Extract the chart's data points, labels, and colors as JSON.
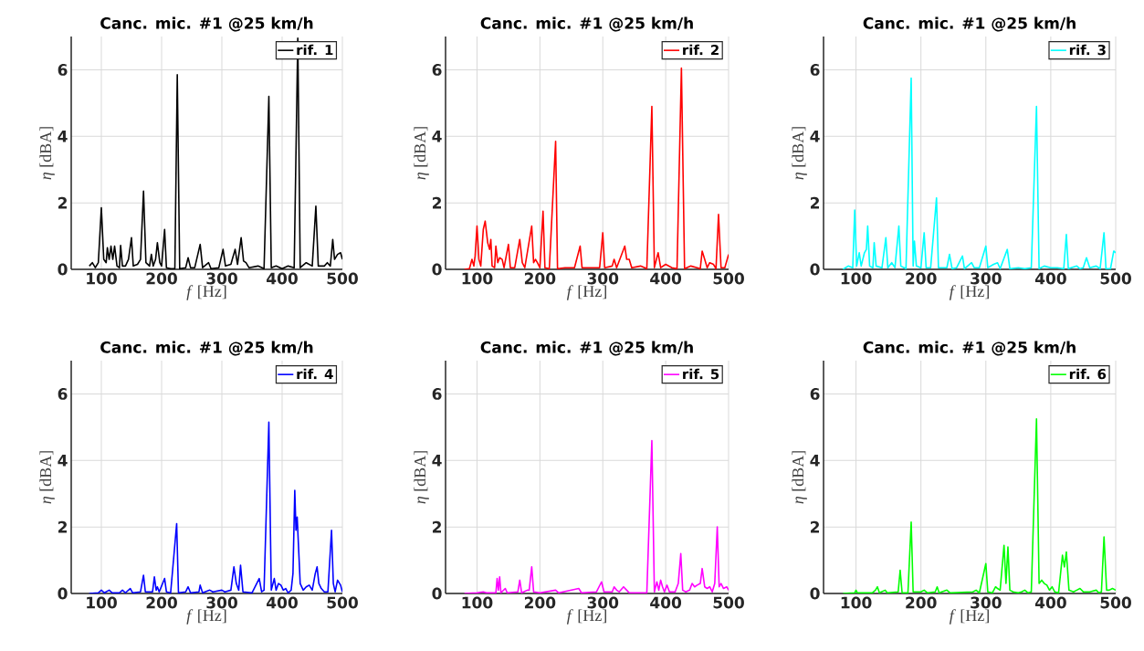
{
  "chart_data": [
    {
      "type": "line",
      "title": "Canc. mic. #1 @25 km/h",
      "xlabel": "*f* [Hz]",
      "ylabel": "*η* [dBA]",
      "xlim": [
        50,
        500
      ],
      "ylim": [
        0,
        7
      ],
      "xticks": [
        100,
        200,
        300,
        400,
        500
      ],
      "yticks": [
        0,
        2,
        4,
        6
      ],
      "grid": true,
      "legend": "top right",
      "series": [
        {
          "name": "rif. 1",
          "color": "#000000",
          "x": [
            80,
            85,
            90,
            95,
            100,
            104,
            108,
            110,
            113,
            116,
            119,
            122,
            126,
            130,
            132,
            135,
            140,
            145,
            150,
            153,
            160,
            165,
            170,
            174,
            180,
            183,
            186,
            190,
            193,
            197,
            200,
            205,
            208,
            215,
            222,
            226,
            230,
            240,
            244,
            248,
            255,
            264,
            268,
            278,
            282,
            295,
            302,
            306,
            315,
            322,
            326,
            332,
            336,
            340,
            345,
            360,
            370,
            378,
            382,
            390,
            400,
            410,
            420,
            426,
            430,
            440,
            450,
            456,
            460,
            470,
            475,
            480,
            484,
            487,
            492,
            497,
            500
          ],
          "values": [
            0.1,
            0.2,
            0.05,
            0.2,
            1.85,
            0.3,
            0.2,
            0.65,
            0.3,
            0.7,
            0.3,
            0.7,
            0.1,
            0.05,
            0.72,
            0.1,
            0.1,
            0.3,
            0.95,
            0.1,
            0.15,
            0.3,
            2.35,
            0.2,
            0.1,
            0.45,
            0.1,
            0.3,
            0.8,
            0.2,
            0.1,
            1.2,
            0.05,
            0.02,
            0.02,
            5.85,
            0.02,
            0.05,
            0.35,
            0.05,
            0.05,
            0.75,
            0.05,
            0.2,
            0.02,
            0.05,
            0.6,
            0.1,
            0.15,
            0.6,
            0.15,
            0.95,
            0.25,
            0.2,
            0.05,
            0.1,
            0.02,
            5.2,
            0.05,
            0.1,
            0.02,
            0.1,
            0.05,
            6.95,
            0.05,
            0.2,
            0.1,
            1.9,
            0.1,
            0.1,
            0.2,
            0.1,
            0.9,
            0.3,
            0.45,
            0.5,
            0.3
          ]
        }
      ]
    },
    {
      "type": "line",
      "title": "Canc. mic. #1 @25 km/h",
      "xlabel": "*f* [Hz]",
      "ylabel": "*η* [dBA]",
      "xlim": [
        50,
        500
      ],
      "ylim": [
        0,
        7
      ],
      "xticks": [
        100,
        200,
        300,
        400,
        500
      ],
      "yticks": [
        0,
        2,
        4,
        6
      ],
      "grid": true,
      "legend": "top right",
      "series": [
        {
          "name": "rif. 2",
          "color": "#ff0000",
          "x": [
            80,
            88,
            92,
            95,
            97,
            100,
            103,
            106,
            110,
            113,
            117,
            120,
            122,
            124,
            128,
            130,
            133,
            136,
            140,
            143,
            150,
            153,
            160,
            168,
            172,
            176,
            187,
            190,
            193,
            196,
            200,
            205,
            208,
            215,
            225,
            228,
            240,
            255,
            264,
            267,
            280,
            295,
            300,
            303,
            315,
            318,
            322,
            335,
            338,
            342,
            346,
            360,
            370,
            378,
            382,
            388,
            392,
            400,
            410,
            418,
            425,
            430,
            440,
            450,
            455,
            458,
            462,
            466,
            470,
            476,
            480,
            484,
            488,
            494,
            500
          ],
          "values": [
            0,
            0.02,
            0.3,
            0.1,
            0.4,
            1.3,
            0.3,
            0.1,
            1.2,
            1.45,
            0.8,
            0.6,
            0.9,
            0.1,
            0.05,
            0.7,
            0.2,
            0.35,
            0.3,
            0.05,
            0.75,
            0.05,
            0.05,
            0.9,
            0.2,
            0.05,
            1.3,
            0.2,
            0.3,
            0.2,
            0.05,
            1.75,
            0.05,
            0.02,
            3.85,
            0.02,
            0.05,
            0.05,
            0.7,
            0.05,
            0.05,
            0.05,
            1.1,
            0.05,
            0.1,
            0.3,
            0.05,
            0.7,
            0.3,
            0.3,
            0.05,
            0.1,
            0.02,
            4.9,
            0.05,
            0.5,
            0.05,
            0.15,
            0.05,
            0.02,
            6.05,
            0.02,
            0.1,
            0.05,
            0.02,
            0.55,
            0.3,
            0.05,
            0.2,
            0.15,
            0.02,
            1.65,
            0.05,
            0.05,
            0.45
          ]
        }
      ]
    },
    {
      "type": "line",
      "title": "Canc. mic. #1 @25 km/h",
      "xlabel": "*f* [Hz]",
      "ylabel": "*η* [dBA]",
      "xlim": [
        50,
        500
      ],
      "ylim": [
        0,
        7
      ],
      "xticks": [
        100,
        200,
        300,
        400,
        500
      ],
      "yticks": [
        0,
        2,
        4,
        6
      ],
      "grid": true,
      "legend": "top right",
      "series": [
        {
          "name": "rif. 3",
          "color": "#00ffff",
          "x": [
            80,
            88,
            95,
            98,
            101,
            105,
            108,
            113,
            116,
            118,
            121,
            126,
            128,
            131,
            140,
            146,
            149,
            155,
            160,
            166,
            169,
            177,
            185,
            188,
            190,
            193,
            200,
            205,
            208,
            215,
            224,
            227,
            240,
            244,
            248,
            255,
            264,
            267,
            278,
            282,
            290,
            300,
            303,
            312,
            318,
            322,
            333,
            337,
            350,
            360,
            370,
            378,
            382,
            390,
            400,
            410,
            420,
            424,
            427,
            440,
            445,
            450,
            455,
            460,
            470,
            476,
            482,
            485,
            492,
            497,
            500
          ],
          "values": [
            0,
            0.1,
            0.05,
            1.78,
            0.1,
            0.5,
            0.1,
            0.5,
            0.6,
            1.3,
            0.1,
            0.05,
            0.8,
            0.1,
            0.05,
            0.95,
            0.05,
            0.2,
            0.05,
            1.3,
            0.1,
            0.02,
            5.75,
            0.1,
            0.85,
            0.1,
            0.05,
            1.1,
            0.05,
            0.05,
            2.15,
            0.05,
            0.05,
            0.45,
            0.02,
            0.05,
            0.4,
            0.02,
            0.2,
            0.05,
            0.05,
            0.7,
            0.05,
            0.15,
            0.2,
            0.02,
            0.6,
            0.02,
            0.05,
            0.02,
            0.05,
            4.9,
            0.02,
            0.1,
            0.05,
            0.05,
            0.02,
            1.05,
            0.02,
            0.1,
            0.02,
            0.05,
            0.35,
            0.05,
            0.1,
            0.02,
            1.1,
            0.02,
            0.02,
            0.55,
            0.5
          ]
        }
      ]
    },
    {
      "type": "line",
      "title": "Canc. mic. #1 @25 km/h",
      "xlabel": "*f* [Hz]",
      "ylabel": "*η* [dBA]",
      "xlim": [
        50,
        500
      ],
      "ylim": [
        0,
        7
      ],
      "xticks": [
        100,
        200,
        300,
        400,
        500
      ],
      "yticks": [
        0,
        2,
        4,
        6
      ],
      "grid": true,
      "legend": "top right",
      "series": [
        {
          "name": "rif. 4",
          "color": "#0000ff",
          "x": [
            80,
            95,
            100,
            105,
            113,
            118,
            130,
            135,
            140,
            148,
            152,
            165,
            170,
            173,
            185,
            188,
            191,
            193,
            196,
            205,
            208,
            215,
            225,
            228,
            240,
            244,
            248,
            262,
            264,
            268,
            280,
            285,
            300,
            305,
            315,
            320,
            324,
            328,
            331,
            335,
            350,
            362,
            366,
            370,
            378,
            382,
            387,
            390,
            394,
            398,
            402,
            406,
            410,
            415,
            418,
            421,
            423,
            425,
            427,
            430,
            435,
            440,
            445,
            450,
            455,
            458,
            461,
            465,
            470,
            476,
            482,
            485,
            488,
            492,
            497,
            500
          ],
          "values": [
            0,
            0.02,
            0.1,
            0.02,
            0.1,
            0.02,
            0.02,
            0.1,
            0.02,
            0.15,
            0.02,
            0.05,
            0.55,
            0.05,
            0.05,
            0.5,
            0.1,
            0.2,
            0.05,
            0.45,
            0.05,
            0.02,
            2.1,
            0.02,
            0.05,
            0.2,
            0.02,
            0.05,
            0.25,
            0.02,
            0.1,
            0.05,
            0.1,
            0.05,
            0.1,
            0.8,
            0.3,
            0.1,
            0.85,
            0.05,
            0.02,
            0.45,
            0.05,
            0.1,
            5.15,
            0.1,
            0.45,
            0.1,
            0.3,
            0.25,
            0.1,
            0.15,
            0.02,
            0.1,
            0.6,
            3.1,
            1.9,
            2.3,
            1.5,
            0.3,
            0.1,
            0.2,
            0.25,
            0.1,
            0.6,
            0.8,
            0.3,
            0.15,
            0.05,
            0.05,
            1.9,
            0.3,
            0.05,
            0.4,
            0.25,
            0.05
          ]
        }
      ]
    },
    {
      "type": "line",
      "title": "Canc. mic. #1 @25 km/h",
      "xlabel": "*f* [Hz]",
      "ylabel": "*η* [dBA]",
      "xlim": [
        50,
        500
      ],
      "ylim": [
        0,
        7
      ],
      "xticks": [
        100,
        200,
        300,
        400,
        500
      ],
      "yticks": [
        0,
        2,
        4,
        6
      ],
      "grid": true,
      "legend": "top right",
      "series": [
        {
          "name": "rif. 5",
          "color": "#ff00ff",
          "x": [
            80,
            100,
            110,
            115,
            130,
            132,
            134,
            136,
            138,
            145,
            148,
            165,
            168,
            171,
            180,
            183,
            187,
            190,
            200,
            225,
            230,
            262,
            266,
            290,
            298,
            302,
            315,
            318,
            322,
            326,
            333,
            338,
            342,
            370,
            378,
            382,
            386,
            389,
            392,
            395,
            398,
            402,
            406,
            415,
            420,
            424,
            427,
            432,
            438,
            442,
            446,
            450,
            455,
            458,
            462,
            466,
            470,
            474,
            478,
            482,
            485,
            488,
            492,
            497,
            500
          ],
          "values": [
            0,
            0.02,
            0.05,
            0.02,
            0.02,
            0.45,
            0.1,
            0.5,
            0.02,
            0.15,
            0.02,
            0.05,
            0.4,
            0.02,
            0.1,
            0.1,
            0.8,
            0.05,
            0.02,
            0.1,
            0.02,
            0.15,
            0.02,
            0.05,
            0.35,
            0.05,
            0.05,
            0.2,
            0.1,
            0.05,
            0.2,
            0.1,
            0.02,
            0.02,
            4.6,
            0.05,
            0.35,
            0.1,
            0.4,
            0.2,
            0.05,
            0.25,
            0.05,
            0.05,
            0.3,
            1.2,
            0.1,
            0.05,
            0.1,
            0.3,
            0.2,
            0.25,
            0.3,
            0.75,
            0.2,
            0.15,
            0.2,
            0.05,
            0.3,
            2.0,
            0.2,
            0.3,
            0.15,
            0.2,
            0.1
          ]
        }
      ]
    },
    {
      "type": "line",
      "title": "Canc. mic. #1 @25 km/h",
      "xlabel": "*f* [Hz]",
      "ylabel": "*η* [dBA]",
      "xlim": [
        50,
        500
      ],
      "ylim": [
        0,
        7
      ],
      "xticks": [
        100,
        200,
        300,
        400,
        500
      ],
      "yticks": [
        0,
        2,
        4,
        6
      ],
      "grid": true,
      "legend": "top right",
      "series": [
        {
          "name": "rif. 6",
          "color": "#00ff00",
          "x": [
            80,
            98,
            100,
            102,
            125,
            130,
            133,
            136,
            145,
            148,
            165,
            168,
            171,
            180,
            185,
            188,
            200,
            205,
            210,
            222,
            225,
            228,
            240,
            245,
            280,
            285,
            290,
            300,
            303,
            310,
            315,
            318,
            322,
            328,
            331,
            334,
            337,
            342,
            350,
            355,
            360,
            365,
            370,
            378,
            382,
            386,
            390,
            394,
            398,
            402,
            406,
            412,
            418,
            421,
            424,
            428,
            435,
            440,
            445,
            450,
            460,
            470,
            474,
            478,
            482,
            486,
            490,
            495,
            500
          ],
          "values": [
            0,
            0.02,
            0.1,
            0.02,
            0.02,
            0.1,
            0.2,
            0.02,
            0.1,
            0.02,
            0.05,
            0.7,
            0.02,
            0.02,
            2.15,
            0.05,
            0.05,
            0.1,
            0.02,
            0.05,
            0.2,
            0.02,
            0.1,
            0.02,
            0.05,
            0.1,
            0.02,
            0.9,
            0.05,
            0.02,
            0.2,
            0.15,
            0.1,
            1.45,
            0.3,
            1.4,
            0.1,
            0.05,
            0.02,
            0.05,
            0.1,
            0.02,
            0.05,
            5.25,
            0.3,
            0.4,
            0.3,
            0.25,
            0.1,
            0.2,
            0.05,
            0.02,
            1.15,
            0.8,
            1.25,
            0.1,
            0.05,
            0.1,
            0.15,
            0.05,
            0.05,
            0.1,
            0.02,
            0.05,
            1.7,
            0.1,
            0.1,
            0.15,
            0.1
          ]
        }
      ]
    }
  ]
}
